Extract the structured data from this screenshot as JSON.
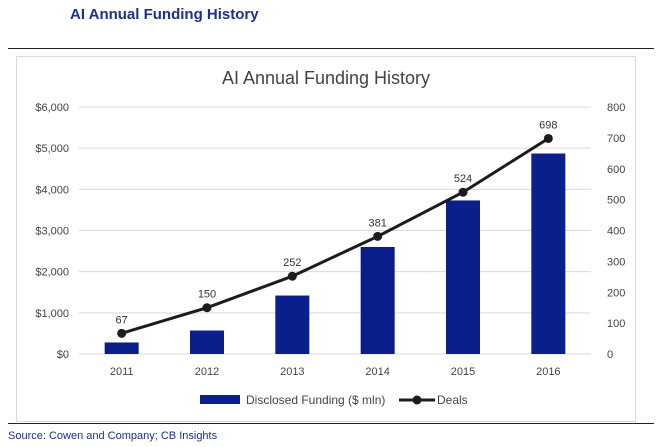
{
  "page": {
    "heading": "AI Annual Funding History",
    "source": "Source: Cowen and Company; CB Insights"
  },
  "colors": {
    "bar": "#0a1e8c",
    "line": "#1c1c1c",
    "grid": "#d9d9d9",
    "heading": "#1f2f8a",
    "text": "#444444"
  },
  "chart_data": {
    "type": "bar",
    "title": "AI Annual Funding History",
    "categories": [
      "2011",
      "2012",
      "2013",
      "2014",
      "2015",
      "2016"
    ],
    "series": [
      {
        "name": "Disclosed Funding ($ mln)",
        "type": "bar",
        "axis": "left",
        "values": [
          280,
          570,
          1420,
          2600,
          3730,
          4870
        ]
      },
      {
        "name": "Deals",
        "type": "line",
        "axis": "right",
        "values": [
          67,
          150,
          252,
          381,
          524,
          698
        ],
        "data_labels": [
          "67",
          "150",
          "252",
          "381",
          "524",
          "698"
        ]
      }
    ],
    "y_left": {
      "ylim": [
        0,
        6000
      ],
      "ticks": [
        0,
        1000,
        2000,
        3000,
        4000,
        5000,
        6000
      ],
      "tick_labels": [
        "$0",
        "$1,000",
        "$2,000",
        "$3,000",
        "$4,000",
        "$5,000",
        "$6,000"
      ]
    },
    "y_right": {
      "ylim": [
        0,
        800
      ],
      "ticks": [
        0,
        100,
        200,
        300,
        400,
        500,
        600,
        700,
        800
      ],
      "tick_labels": [
        "0",
        "100",
        "200",
        "300",
        "400",
        "500",
        "600",
        "700",
        "800"
      ]
    },
    "xlabel": "",
    "ylabel": "",
    "grid": true,
    "legend": {
      "position": "bottom",
      "entries": [
        "Disclosed Funding ($ mln)",
        "Deals"
      ]
    }
  }
}
